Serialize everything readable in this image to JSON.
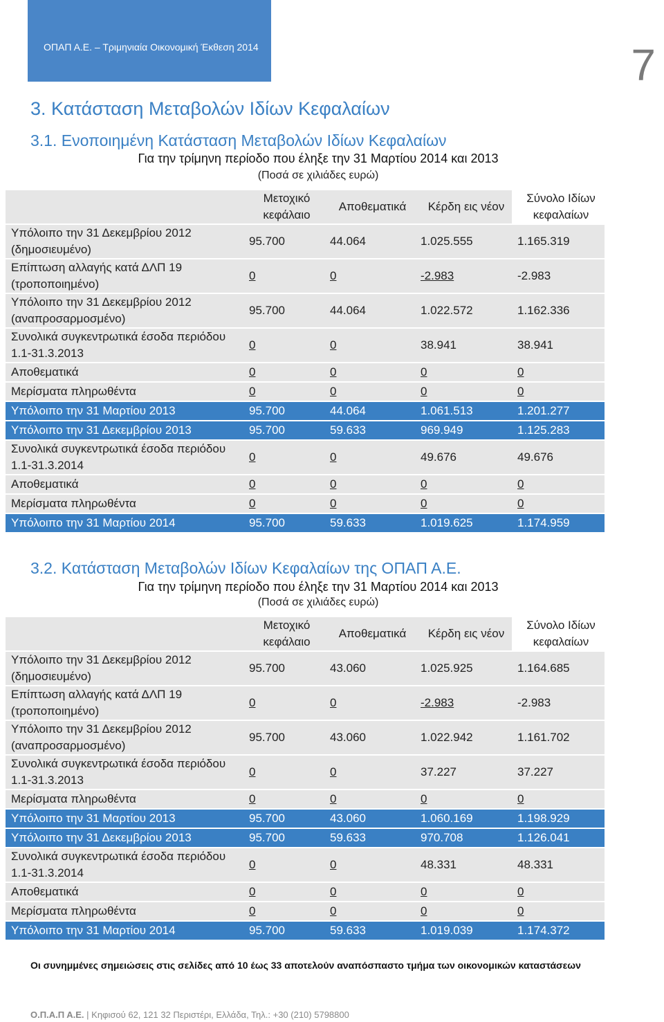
{
  "header": {
    "text": "ΟΠΑΠ Α.Ε. – Τριμηνιαία Οικονομική Έκθεση 2014",
    "page_number": "7"
  },
  "section_title": "3. Κατάσταση Μεταβολών Ιδίων Κεφαλαίων",
  "columns": [
    "Μετοχικό κεφάλαιο",
    "Αποθεματικά",
    "Κέρδη εις νέον",
    "Σύνολο Ιδίων κεφαλαίων"
  ],
  "table1": {
    "title": "3.1. Ενοποιημένη Κατάσταση Μεταβολών Ιδίων Κεφαλαίων",
    "period": "Για την τρίμηνη περίοδο που έληξε την 31 Μαρτίου 2014 και 2013",
    "amounts_note": "(Ποσά σε χιλιάδες ευρώ)",
    "rows": [
      {
        "label": "Υπόλοιπο την 31 Δεκεμβρίου 2012 (δημοσιευμένο)",
        "c1": "95.700",
        "c2": "44.064",
        "c3": "1.025.555",
        "c4": "1.165.319"
      },
      {
        "label": "Επίπτωση αλλαγής κατά ΔΛΠ 19 (τροποποιημένο)",
        "c1": "0",
        "c2": "0",
        "c3": "-2.983",
        "c4": "-2.983"
      },
      {
        "label": "Υπόλοιπο την 31 Δεκεμβρίου 2012 (αναπροσαρμοσμένο)",
        "c1": "95.700",
        "c2": "44.064",
        "c3": "1.022.572",
        "c4": "1.162.336"
      },
      {
        "label": "Συνολικά συγκεντρωτικά έσοδα περιόδου 1.1-31.3.2013",
        "c1": "0",
        "c2": "0",
        "c3": "38.941",
        "c4": "38.941"
      },
      {
        "label": "Αποθεματικά",
        "c1": "0",
        "c2": "0",
        "c3": "0",
        "c4": "0"
      },
      {
        "label": "Μερίσματα πληρωθέντα",
        "c1": "0",
        "c2": "0",
        "c3": "0",
        "c4": "0"
      },
      {
        "label": "Υπόλοιπο την 31 Μαρτίου 2013",
        "c1": "95.700",
        "c2": "44.064",
        "c3": "1.061.513",
        "c4": "1.201.277"
      },
      {
        "label": "Υπόλοιπο την 31 Δεκεμβρίου 2013",
        "c1": "95.700",
        "c2": "59.633",
        "c3": "969.949",
        "c4": "1.125.283"
      },
      {
        "label": "Συνολικά συγκεντρωτικά έσοδα περιόδου 1.1-31.3.2014",
        "c1": "0",
        "c2": "0",
        "c3": "49.676",
        "c4": "49.676"
      },
      {
        "label": "Αποθεματικά",
        "c1": "0",
        "c2": "0",
        "c3": "0",
        "c4": "0"
      },
      {
        "label": "Μερίσματα πληρωθέντα",
        "c1": "0",
        "c2": "0",
        "c3": "0",
        "c4": "0"
      },
      {
        "label": "Υπόλοιπο την 31 Μαρτίου 2014",
        "c1": "95.700",
        "c2": "59.633",
        "c3": "1.019.625",
        "c4": "1.174.959"
      }
    ]
  },
  "table2": {
    "title": "3.2. Κατάσταση Μεταβολών Ιδίων Κεφαλαίων της ΟΠΑΠ Α.Ε.",
    "period": "Για την τρίμηνη περίοδο που έληξε την 31 Μαρτίου 2014 και 2013",
    "amounts_note": "(Ποσά σε χιλιάδες ευρώ)",
    "rows": [
      {
        "label": "Υπόλοιπο την 31 Δεκεμβρίου 2012 (δημοσιευμένο)",
        "c1": "95.700",
        "c2": "43.060",
        "c3": "1.025.925",
        "c4": "1.164.685"
      },
      {
        "label": "Επίπτωση αλλαγής κατά ΔΛΠ 19 (τροποποιημένο)",
        "c1": "0",
        "c2": "0",
        "c3": "-2.983",
        "c4": "-2.983"
      },
      {
        "label": "Υπόλοιπο την 31 Δεκεμβρίου 2012 (αναπροσαρμοσμένο)",
        "c1": "95.700",
        "c2": "43.060",
        "c3": "1.022.942",
        "c4": "1.161.702"
      },
      {
        "label": "Συνολικά συγκεντρωτικά έσοδα περιόδου 1.1-31.3.2013",
        "c1": "0",
        "c2": "0",
        "c3": "37.227",
        "c4": "37.227"
      },
      {
        "label": "Μερίσματα πληρωθέντα",
        "c1": "0",
        "c2": "0",
        "c3": "0",
        "c4": "0"
      },
      {
        "label": "Υπόλοιπο την 31 Μαρτίου 2013",
        "c1": "95.700",
        "c2": "43.060",
        "c3": "1.060.169",
        "c4": "1.198.929"
      },
      {
        "label": "Υπόλοιπο την 31 Δεκεμβρίου 2013",
        "c1": "95.700",
        "c2": "59.633",
        "c3": "970.708",
        "c4": "1.126.041"
      },
      {
        "label": "Συνολικά συγκεντρωτικά έσοδα περιόδου 1.1-31.3.2014",
        "c1": "0",
        "c2": "0",
        "c3": "48.331",
        "c4": "48.331"
      },
      {
        "label": "Αποθεματικά",
        "c1": "0",
        "c2": "0",
        "c3": "0",
        "c4": "0"
      },
      {
        "label": "Μερίσματα πληρωθέντα",
        "c1": "0",
        "c2": "0",
        "c3": "0",
        "c4": "0"
      },
      {
        "label": "Υπόλοιπο την 31 Μαρτίου 2014",
        "c1": "95.700",
        "c2": "59.633",
        "c3": "1.019.039",
        "c4": "1.174.372"
      }
    ]
  },
  "note": "Οι συνημμένες σημειώσεις στις σελίδες από 10 έως 33 αποτελούν αναπόσπαστο τμήμα των οικονομικών καταστάσεων",
  "footer": {
    "company": "Ο.Π.Α.Π Α.Ε.",
    "address": "| Κηφισού 62, 121 32 Περιστέρι, Ελλάδα, Τηλ.: +30 (210) 5798800"
  },
  "colors": {
    "accent": "#3a80c4",
    "header_box": "#4a86c8",
    "cell_bg": "#e6e6e6"
  }
}
